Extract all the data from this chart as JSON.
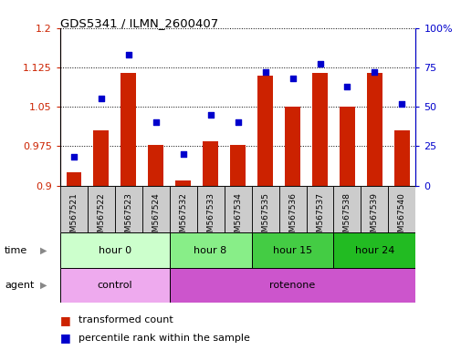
{
  "title": "GDS5341 / ILMN_2600407",
  "samples": [
    "GSM567521",
    "GSM567522",
    "GSM567523",
    "GSM567524",
    "GSM567532",
    "GSM567533",
    "GSM567534",
    "GSM567535",
    "GSM567536",
    "GSM567537",
    "GSM567538",
    "GSM567539",
    "GSM567540"
  ],
  "bar_values": [
    0.925,
    1.005,
    1.115,
    0.978,
    0.91,
    0.985,
    0.978,
    1.11,
    1.05,
    1.115,
    1.05,
    1.115,
    1.005
  ],
  "scatter_values": [
    18,
    55,
    83,
    40,
    20,
    45,
    40,
    72,
    68,
    77,
    63,
    72,
    52
  ],
  "bar_bottom": 0.9,
  "ylim_left": [
    0.9,
    1.2
  ],
  "ylim_right": [
    0,
    100
  ],
  "yticks_left": [
    0.9,
    0.975,
    1.05,
    1.125,
    1.2
  ],
  "yticks_right": [
    0,
    25,
    50,
    75,
    100
  ],
  "ytick_labels_left": [
    "0.9",
    "0.975",
    "1.05",
    "1.125",
    "1.2"
  ],
  "ytick_labels_right": [
    "0",
    "25",
    "50",
    "75",
    "100%"
  ],
  "bar_color": "#cc2200",
  "scatter_color": "#0000cc",
  "time_groups": [
    {
      "label": "hour 0",
      "start": 0,
      "end": 4,
      "color": "#ccffcc"
    },
    {
      "label": "hour 8",
      "start": 4,
      "end": 7,
      "color": "#88ee88"
    },
    {
      "label": "hour 15",
      "start": 7,
      "end": 10,
      "color": "#44cc44"
    },
    {
      "label": "hour 24",
      "start": 10,
      "end": 13,
      "color": "#22bb22"
    }
  ],
  "agent_groups": [
    {
      "label": "control",
      "start": 0,
      "end": 4,
      "color": "#eeaaee"
    },
    {
      "label": "rotenone",
      "start": 4,
      "end": 13,
      "color": "#cc55cc"
    }
  ],
  "time_row_label": "time",
  "agent_row_label": "agent",
  "legend_bar_label": "transformed count",
  "legend_scatter_label": "percentile rank within the sample"
}
